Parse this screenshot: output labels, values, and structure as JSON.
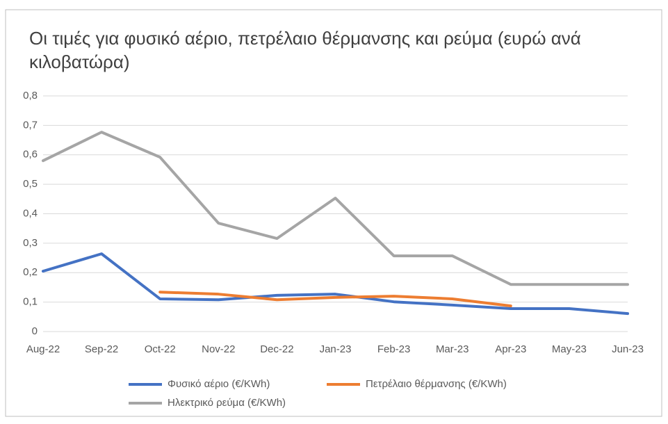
{
  "chart_data": {
    "type": "line",
    "title": "Οι τιμές για φυσικό αέριο, πετρέλαιο θέρμανσης και ρεύμα (ευρώ ανά κιλοβατώρα)",
    "categories": [
      "Aug-22",
      "Sep-22",
      "Oct-22",
      "Nov-22",
      "Dec-22",
      "Jan-23",
      "Feb-23",
      "Mar-23",
      "Apr-23",
      "May-23",
      "Jun-23"
    ],
    "series": [
      {
        "name": "Φυσικό αέριο (€/KWh)",
        "color": "#4472c4",
        "values": [
          0.205,
          0.264,
          0.111,
          0.108,
          0.123,
          0.127,
          0.101,
          0.09,
          0.078,
          0.078,
          0.061
        ]
      },
      {
        "name": "Πετρέλαιο θέρμανσης (€/KWh)",
        "color": "#ed7d31",
        "values": [
          null,
          null,
          0.134,
          0.127,
          0.108,
          0.116,
          0.12,
          0.111,
          0.087,
          null,
          null
        ]
      },
      {
        "name": "Ηλεκτρικό ρεύμα (€/KWh)",
        "color": "#a5a5a5",
        "values": [
          0.58,
          0.677,
          0.592,
          0.368,
          0.316,
          0.453,
          0.257,
          0.257,
          0.16,
          0.16,
          0.16
        ]
      }
    ],
    "ylim": [
      0,
      0.8
    ],
    "yticks": [
      0,
      {
        "value": 0.1,
        "label": "0,1"
      },
      {
        "value": 0.2,
        "label": "0,2"
      },
      {
        "value": 0.3,
        "label": "0,3"
      },
      {
        "value": 0.4,
        "label": "0,4"
      },
      {
        "value": 0.5,
        "label": "0,5"
      },
      {
        "value": 0.6,
        "label": "0,6"
      },
      {
        "value": 0.7,
        "label": "0,7"
      },
      {
        "value": 0.8,
        "label": "0,8"
      }
    ],
    "grid": true,
    "legend": "bottom"
  }
}
